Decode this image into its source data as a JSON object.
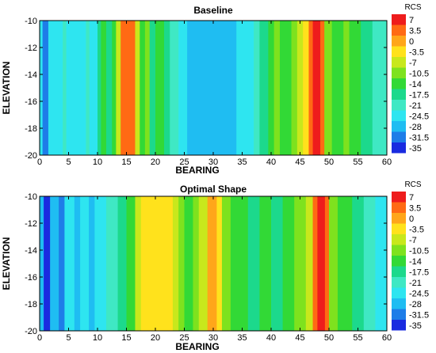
{
  "chart_data": [
    {
      "type": "heatmap",
      "title": "Baseline",
      "xlabel": "BEARING",
      "ylabel": "ELEVATION",
      "xlim": [
        0,
        60
      ],
      "ylim": [
        -20,
        -10
      ],
      "x_ticks": [
        0,
        5,
        10,
        15,
        20,
        25,
        30,
        35,
        40,
        45,
        50,
        55,
        60
      ],
      "y_ticks": [
        -10,
        -12,
        -14,
        -16,
        -18,
        -20
      ],
      "colorbar_title": "RCS",
      "levels": [
        7,
        3.5,
        0,
        -3.5,
        -7,
        -10.5,
        -14,
        -17.5,
        -21,
        -24.5,
        -28,
        -31.5,
        -35
      ],
      "bearing_bands": [
        {
          "x0": 0,
          "x1": 0.5,
          "level": -24.5
        },
        {
          "x0": 0.5,
          "x1": 1.5,
          "level": -31.5
        },
        {
          "x0": 1.5,
          "x1": 4,
          "level": -24.5
        },
        {
          "x0": 4,
          "x1": 4.6,
          "level": -21
        },
        {
          "x0": 4.6,
          "x1": 8,
          "level": -24.5
        },
        {
          "x0": 8,
          "x1": 8.6,
          "level": -21
        },
        {
          "x0": 8.6,
          "x1": 10,
          "level": -24.5
        },
        {
          "x0": 10,
          "x1": 10.6,
          "level": -17.5
        },
        {
          "x0": 10.6,
          "x1": 11.5,
          "level": -14
        },
        {
          "x0": 11.5,
          "x1": 12.5,
          "level": -17.5
        },
        {
          "x0": 12.5,
          "x1": 13.2,
          "level": -14
        },
        {
          "x0": 13.2,
          "x1": 14,
          "level": -7
        },
        {
          "x0": 14,
          "x1": 16.5,
          "level": 3.5
        },
        {
          "x0": 16.5,
          "x1": 17.3,
          "level": -7
        },
        {
          "x0": 17.3,
          "x1": 18.2,
          "level": -14
        },
        {
          "x0": 18.2,
          "x1": 19,
          "level": -10.5
        },
        {
          "x0": 19,
          "x1": 20,
          "level": -17.5
        },
        {
          "x0": 20,
          "x1": 21.5,
          "level": -14
        },
        {
          "x0": 21.5,
          "x1": 22.5,
          "level": -17.5
        },
        {
          "x0": 22.5,
          "x1": 24,
          "level": -21
        },
        {
          "x0": 24,
          "x1": 25.5,
          "level": -24.5
        },
        {
          "x0": 25.5,
          "x1": 34,
          "level": -28
        },
        {
          "x0": 34,
          "x1": 37,
          "level": -24.5
        },
        {
          "x0": 37,
          "x1": 38,
          "level": -21
        },
        {
          "x0": 38,
          "x1": 39.5,
          "level": -17.5
        },
        {
          "x0": 39.5,
          "x1": 40.5,
          "level": -14
        },
        {
          "x0": 40.5,
          "x1": 41.5,
          "level": -10.5
        },
        {
          "x0": 41.5,
          "x1": 43.5,
          "level": -14
        },
        {
          "x0": 43.5,
          "x1": 44.5,
          "level": -10.5
        },
        {
          "x0": 44.5,
          "x1": 45.5,
          "level": -7
        },
        {
          "x0": 45.5,
          "x1": 46.5,
          "level": -3.5
        },
        {
          "x0": 46.5,
          "x1": 47.2,
          "level": 3.5
        },
        {
          "x0": 47.2,
          "x1": 48.5,
          "level": 7
        },
        {
          "x0": 48.5,
          "x1": 49.2,
          "level": 3.5
        },
        {
          "x0": 49.2,
          "x1": 50.5,
          "level": -10.5
        },
        {
          "x0": 50.5,
          "x1": 52.5,
          "level": -14
        },
        {
          "x0": 52.5,
          "x1": 53.5,
          "level": -10.5
        },
        {
          "x0": 53.5,
          "x1": 55.5,
          "level": -14
        },
        {
          "x0": 55.5,
          "x1": 57.5,
          "level": -17.5
        },
        {
          "x0": 57.5,
          "x1": 60,
          "level": -21
        }
      ]
    },
    {
      "type": "heatmap",
      "title": "Optimal Shape",
      "xlabel": "BEARING",
      "ylabel": "ELEVATION",
      "xlim": [
        0,
        60
      ],
      "ylim": [
        -20,
        -10
      ],
      "x_ticks": [
        0,
        5,
        10,
        15,
        20,
        25,
        30,
        35,
        40,
        45,
        50,
        55,
        60
      ],
      "y_ticks": [
        -10,
        -12,
        -14,
        -16,
        -18,
        -20
      ],
      "colorbar_title": "RCS",
      "levels": [
        7,
        3.5,
        0,
        -3.5,
        -7,
        -10.5,
        -14,
        -17.5,
        -21,
        -24.5,
        -28,
        -31.5,
        -35
      ],
      "bearing_bands": [
        {
          "x0": 0,
          "x1": 0.7,
          "level": -28
        },
        {
          "x0": 0.7,
          "x1": 1.8,
          "level": -35
        },
        {
          "x0": 1.8,
          "x1": 3.3,
          "level": -28
        },
        {
          "x0": 3.3,
          "x1": 4.3,
          "level": -31.5
        },
        {
          "x0": 4.3,
          "x1": 6,
          "level": -24.5
        },
        {
          "x0": 6,
          "x1": 7,
          "level": -28
        },
        {
          "x0": 7,
          "x1": 8.5,
          "level": -24.5
        },
        {
          "x0": 8.5,
          "x1": 9.5,
          "level": -28
        },
        {
          "x0": 9.5,
          "x1": 11.5,
          "level": -24.5
        },
        {
          "x0": 11.5,
          "x1": 13.5,
          "level": -21
        },
        {
          "x0": 13.5,
          "x1": 15,
          "level": -17.5
        },
        {
          "x0": 15,
          "x1": 16.5,
          "level": -14
        },
        {
          "x0": 16.5,
          "x1": 17.5,
          "level": -7
        },
        {
          "x0": 17.5,
          "x1": 23,
          "level": -3.5
        },
        {
          "x0": 23,
          "x1": 24,
          "level": -7
        },
        {
          "x0": 24,
          "x1": 25,
          "level": -10.5
        },
        {
          "x0": 25,
          "x1": 26.5,
          "level": -14
        },
        {
          "x0": 26.5,
          "x1": 27.5,
          "level": -10.5
        },
        {
          "x0": 27.5,
          "x1": 29,
          "level": -7
        },
        {
          "x0": 29,
          "x1": 30.6,
          "level": 0
        },
        {
          "x0": 30.6,
          "x1": 31.5,
          "level": -3.5
        },
        {
          "x0": 31.5,
          "x1": 33,
          "level": -10.5
        },
        {
          "x0": 33,
          "x1": 36,
          "level": -14
        },
        {
          "x0": 36,
          "x1": 38,
          "level": -17.5
        },
        {
          "x0": 38,
          "x1": 40,
          "level": -14
        },
        {
          "x0": 40,
          "x1": 42,
          "level": -17.5
        },
        {
          "x0": 42,
          "x1": 44,
          "level": -14
        },
        {
          "x0": 44,
          "x1": 46,
          "level": -10.5
        },
        {
          "x0": 46,
          "x1": 47.2,
          "level": -7
        },
        {
          "x0": 47.2,
          "x1": 48,
          "level": 3.5
        },
        {
          "x0": 48,
          "x1": 49.3,
          "level": 7
        },
        {
          "x0": 49.3,
          "x1": 50,
          "level": 3.5
        },
        {
          "x0": 50,
          "x1": 51.5,
          "level": -10.5
        },
        {
          "x0": 51.5,
          "x1": 54,
          "level": -14
        },
        {
          "x0": 54,
          "x1": 56,
          "level": -17.5
        },
        {
          "x0": 56,
          "x1": 58,
          "level": -21
        },
        {
          "x0": 58,
          "x1": 60,
          "level": -24.5
        }
      ]
    }
  ],
  "colors": {
    "7": "#ee1c1c",
    "3.5": "#ff6a14",
    "0": "#ffa61a",
    "-3.5": "#ffe21c",
    "-7": "#c8e81c",
    "-10.5": "#7ee21e",
    "-14": "#32d936",
    "-17.5": "#1cd98c",
    "-21": "#3fe8c4",
    "-24.5": "#2ee5f0",
    "-28": "#1fbdf2",
    "-31.5": "#1e7de8",
    "-35": "#1a2be0"
  }
}
